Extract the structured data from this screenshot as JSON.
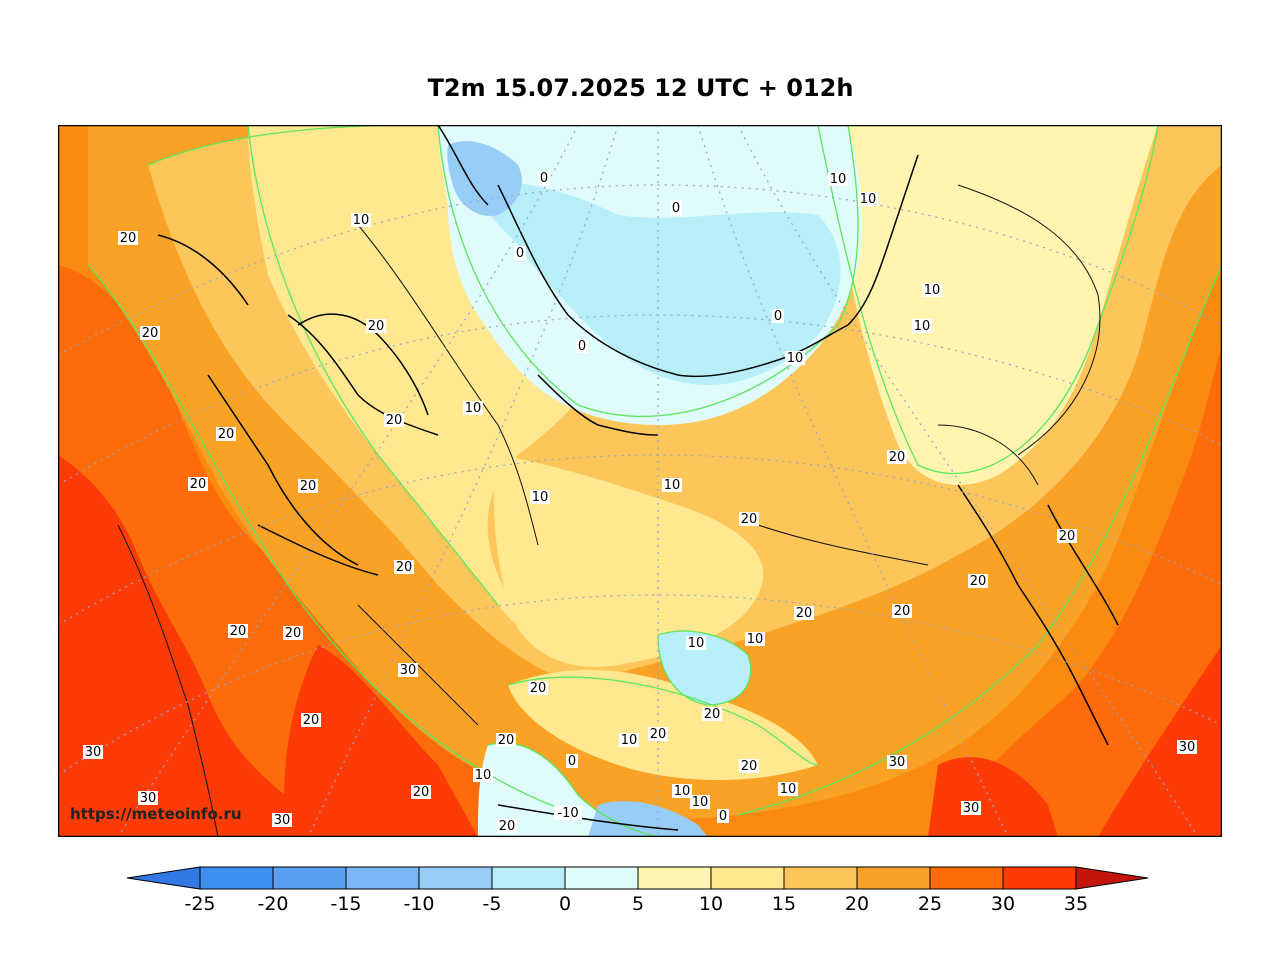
{
  "title": "T2m 15.07.2025 12 UTC + 012h",
  "watermark": "https://meteoinfo.ru",
  "colorbar": {
    "ticks": [
      "-25",
      "-20",
      "-15",
      "-10",
      "-5",
      "0",
      "5",
      "10",
      "15",
      "20",
      "25",
      "30",
      "35"
    ],
    "colors": [
      "#3f8ff0",
      "#5aa0f2",
      "#78b6f5",
      "#98cdf7",
      "#b8eef7",
      "#e0fbfb",
      "#fff5b0",
      "#ffe890",
      "#fcc65a",
      "#f9a226",
      "#fe6c09",
      "#fc3b06",
      "#d81d0a"
    ],
    "under_color": "#3279e6",
    "over_color": "#c4150b"
  },
  "map": {
    "colors": {
      "ocean_far": "#fa8a10",
      "land_warm": "#f9a226",
      "land_mild": "#fcc65a",
      "land_cool": "#ffe890",
      "arctic_cold": "#e0fbfb",
      "ice": "#b8eef7",
      "hot": "#fc3b06",
      "very_hot": "#d81d0a",
      "green_contour": "#5ce65c",
      "coast": "#000000",
      "grid": "#9aa4c8"
    },
    "contour_labels": [
      "20",
      "20",
      "10",
      "0",
      "0",
      "0",
      "10",
      "10",
      "10",
      "10",
      "0",
      "0",
      "10",
      "10",
      "20",
      "20",
      "10",
      "20",
      "20",
      "20",
      "20",
      "10",
      "10",
      "20",
      "10",
      "20",
      "20",
      "20",
      "20",
      "20",
      "20",
      "30",
      "20",
      "10",
      "20",
      "20",
      "10",
      "20",
      "20",
      "10",
      "30",
      "30",
      "30",
      "30",
      "0",
      "10",
      "20",
      "10",
      "-10",
      "0",
      "10",
      "30",
      "30",
      "20",
      "20",
      "20"
    ]
  }
}
